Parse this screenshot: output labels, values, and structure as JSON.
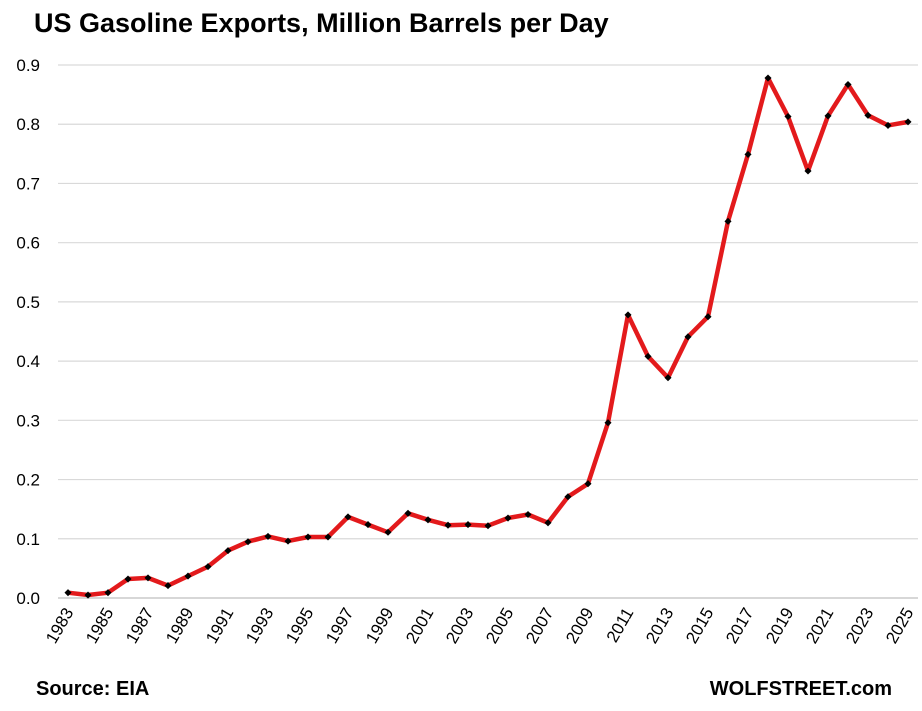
{
  "chart_data": {
    "type": "line",
    "title": "US Gasoline Exports, Million Barrels per Day",
    "source": "Source: EIA",
    "brand": "WOLFSTREET.com",
    "xlabel": "",
    "ylabel": "",
    "ylim": [
      0,
      0.9
    ],
    "yticks": [
      "0.0",
      "0.1",
      "0.2",
      "0.3",
      "0.4",
      "0.5",
      "0.6",
      "0.7",
      "0.8",
      "0.9"
    ],
    "xticks": [
      "1983",
      "1985",
      "1987",
      "1989",
      "1991",
      "1993",
      "1995",
      "1997",
      "1999",
      "2001",
      "2003",
      "2005",
      "2007",
      "2009",
      "2011",
      "2013",
      "2015",
      "2017",
      "2019",
      "2021",
      "2023",
      "2025"
    ],
    "grid": true,
    "line_color": "#e31a1c",
    "marker_color": "#000000",
    "x": [
      1983,
      1984,
      1985,
      1986,
      1987,
      1988,
      1989,
      1990,
      1991,
      1992,
      1993,
      1994,
      1995,
      1996,
      1997,
      1998,
      1999,
      2000,
      2001,
      2002,
      2003,
      2004,
      2005,
      2006,
      2007,
      2008,
      2009,
      2010,
      2011,
      2012,
      2013,
      2014,
      2015,
      2016,
      2017,
      2018,
      2019,
      2020,
      2021,
      2022,
      2023,
      2024,
      2025
    ],
    "values": [
      0.009,
      0.005,
      0.009,
      0.032,
      0.034,
      0.021,
      0.037,
      0.053,
      0.08,
      0.095,
      0.104,
      0.096,
      0.103,
      0.103,
      0.137,
      0.124,
      0.111,
      0.143,
      0.132,
      0.123,
      0.124,
      0.122,
      0.135,
      0.141,
      0.127,
      0.171,
      0.193,
      0.296,
      0.478,
      0.408,
      0.372,
      0.441,
      0.475,
      0.636,
      0.749,
      0.878,
      0.813,
      0.721,
      0.814,
      0.867,
      0.815,
      0.798,
      0.804
    ]
  }
}
